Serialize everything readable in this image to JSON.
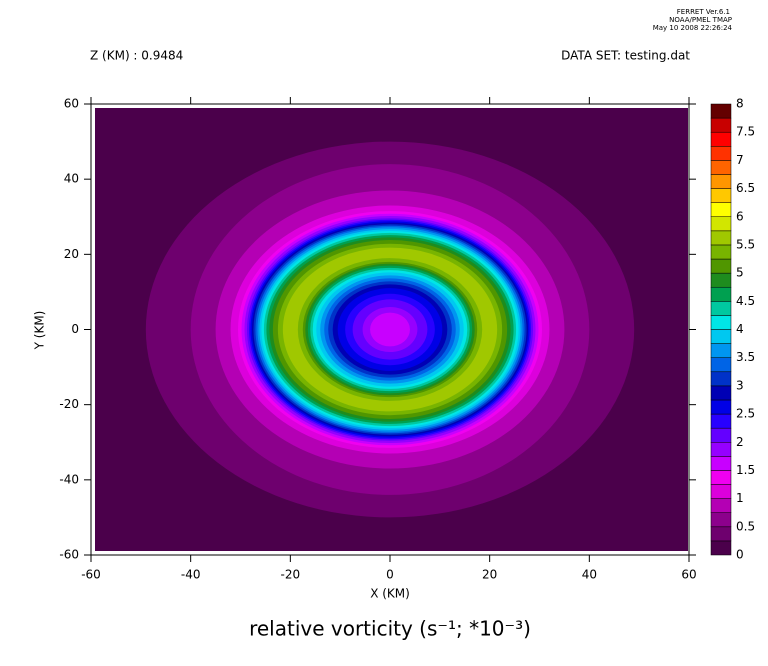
{
  "header": {
    "program": "FERRET Ver.6.1",
    "org": "NOAA/PMEL TMAP",
    "date": "May 10 2008 22:26:24"
  },
  "chart_data": {
    "type": "filled-contour",
    "subtitle_left": "Z (KM) : 0.9484",
    "subtitle_right": "DATA SET: testing.dat",
    "title": "relative vorticity (s⁻¹; *10⁻³)",
    "x_label": "X (KM)",
    "y_label": "Y (KM)",
    "xlim": [
      -60,
      60
    ],
    "xticks": [
      -60,
      -40,
      -20,
      0,
      20,
      40,
      60
    ],
    "ylim": [
      -60,
      60
    ],
    "yticks": [
      -60,
      -40,
      -20,
      0,
      20,
      40,
      60
    ],
    "levels": [
      0,
      0.25,
      0.5,
      0.75,
      1,
      1.25,
      1.5,
      1.75,
      2,
      2.25,
      2.5,
      2.75,
      3,
      3.25,
      3.5,
      3.75,
      4,
      4.25,
      4.5,
      4.75,
      5,
      5.25,
      5.5,
      5.75,
      6,
      6.25,
      6.5,
      6.75,
      7,
      7.25,
      7.5,
      7.75,
      8
    ],
    "colors": [
      "#4b004b",
      "#6e006e",
      "#8c008c",
      "#b400b4",
      "#dc00dc",
      "#f000f0",
      "#c800ff",
      "#9600ff",
      "#6400ff",
      "#2800ff",
      "#0000e6",
      "#0000b4",
      "#0032c8",
      "#0064e6",
      "#0096f0",
      "#00c8f0",
      "#00e6e6",
      "#00c8a0",
      "#00a050",
      "#1e8c1e",
      "#509600",
      "#78b400",
      "#a0c800",
      "#d2e600",
      "#ffff00",
      "#ffc800",
      "#ff9600",
      "#ff6400",
      "#ff3200",
      "#ff0000",
      "#c80000",
      "#640000"
    ],
    "colorbar_ticks": [
      0,
      0.5,
      1,
      1.5,
      2,
      2.5,
      3,
      3.5,
      4,
      4.5,
      5,
      5.5,
      6,
      6.5,
      7,
      7.5,
      8
    ],
    "contours": [
      {
        "level": 0.25,
        "x_radius": 49,
        "y_radius": 50
      },
      {
        "level": 0.5,
        "x_radius": 40,
        "y_radius": 44
      },
      {
        "level": 0.75,
        "x_radius": 35,
        "y_radius": 37
      },
      {
        "level": 1,
        "x_radius": 32,
        "y_radius": 33
      },
      {
        "level": 1.25,
        "x_radius": 30.5,
        "y_radius": 31.5
      },
      {
        "level": 1.5,
        "x_radius": 29.8,
        "y_radius": 30.8
      },
      {
        "level": 1.75,
        "x_radius": 29.2,
        "y_radius": 30.2
      },
      {
        "level": 2,
        "x_radius": 28.7,
        "y_radius": 29.6
      },
      {
        "level": 2.25,
        "x_radius": 28.3,
        "y_radius": 29.2
      },
      {
        "level": 2.5,
        "x_radius": 28,
        "y_radius": 28.8
      },
      {
        "level": 2.75,
        "x_radius": 27.7,
        "y_radius": 28.4
      },
      {
        "level": 3,
        "x_radius": 27.4,
        "y_radius": 28
      },
      {
        "level": 3.25,
        "x_radius": 27,
        "y_radius": 27.6
      },
      {
        "level": 3.5,
        "x_radius": 26.6,
        "y_radius": 27.2
      },
      {
        "level": 3.75,
        "x_radius": 26.2,
        "y_radius": 26.7
      },
      {
        "level": 4,
        "x_radius": 25.8,
        "y_radius": 26.2
      },
      {
        "level": 4.25,
        "x_radius": 25.3,
        "y_radius": 25.7
      },
      {
        "level": 4.5,
        "x_radius": 24.8,
        "y_radius": 25.1
      },
      {
        "level": 4.75,
        "x_radius": 24.2,
        "y_radius": 24.5
      },
      {
        "level": 5,
        "x_radius": 23.5,
        "y_radius": 23.8
      },
      {
        "level": 5.25,
        "x_radius": 22.5,
        "y_radius": 22.8
      },
      {
        "level": 5.5,
        "x_radius": 21.5,
        "y_radius": 21.8
      },
      {
        "level": 5.25,
        "x_radius": 18.5,
        "y_radius": 19
      },
      {
        "level": 5,
        "x_radius": 17.5,
        "y_radius": 18
      },
      {
        "level": 4.75,
        "x_radius": 17,
        "y_radius": 17.5
      },
      {
        "level": 4.5,
        "x_radius": 16.5,
        "y_radius": 17
      },
      {
        "level": 4.25,
        "x_radius": 16,
        "y_radius": 16.4
      },
      {
        "level": 4,
        "x_radius": 15.5,
        "y_radius": 15.8
      },
      {
        "level": 3.75,
        "x_radius": 14.8,
        "y_radius": 15.2
      },
      {
        "level": 3.5,
        "x_radius": 14,
        "y_radius": 14.4
      },
      {
        "level": 3.25,
        "x_radius": 13.2,
        "y_radius": 13.6
      },
      {
        "level": 3,
        "x_radius": 12.4,
        "y_radius": 12.8
      },
      {
        "level": 2.75,
        "x_radius": 11.5,
        "y_radius": 12
      },
      {
        "level": 2.5,
        "x_radius": 10.5,
        "y_radius": 11
      },
      {
        "level": 2.25,
        "x_radius": 9,
        "y_radius": 9.5
      },
      {
        "level": 2,
        "x_radius": 7.5,
        "y_radius": 8
      },
      {
        "level": 1.75,
        "x_radius": 5.5,
        "y_radius": 6
      },
      {
        "level": 1.5,
        "x_radius": 4,
        "y_radius": 4.5
      }
    ]
  }
}
